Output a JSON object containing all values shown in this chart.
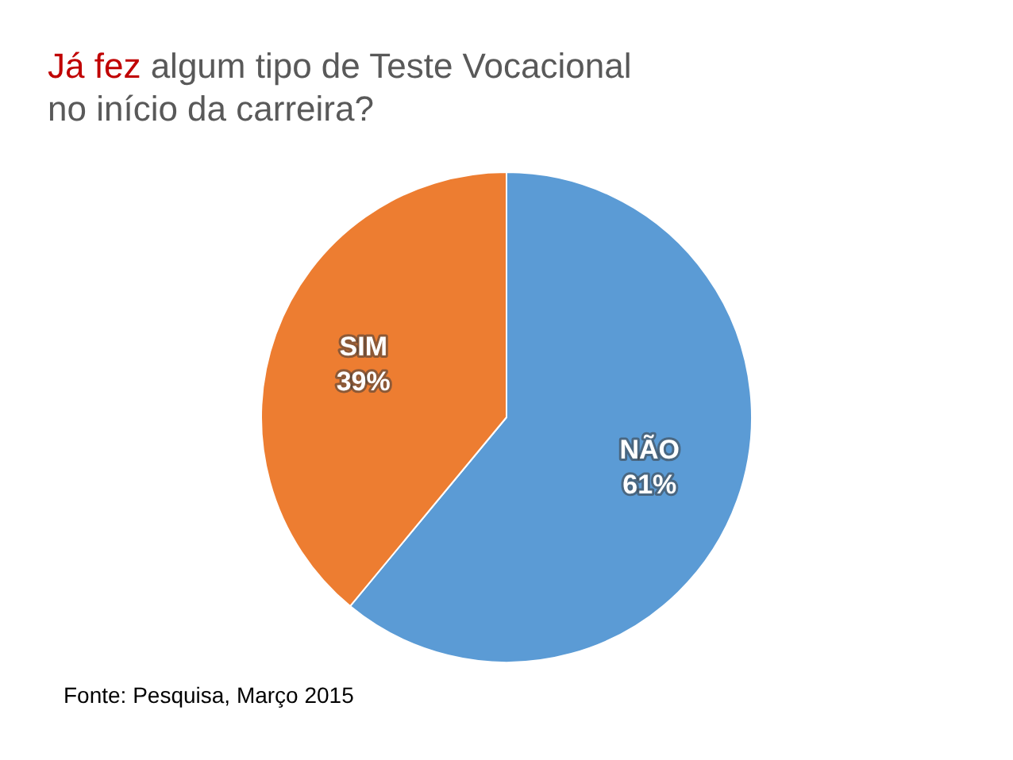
{
  "chart_data": {
    "type": "pie",
    "title": "Já fez algum tipo de Teste Vocacional no início da carreira?",
    "categories": [
      "NÃO",
      "SIM"
    ],
    "values": [
      61,
      39
    ],
    "colors": [
      "#5b9bd5",
      "#ed7d31"
    ],
    "value_labels": [
      "61%",
      "39%"
    ],
    "legend": false,
    "annotations": [
      "Fonte: Pesquisa, Março 2015"
    ]
  }
}
